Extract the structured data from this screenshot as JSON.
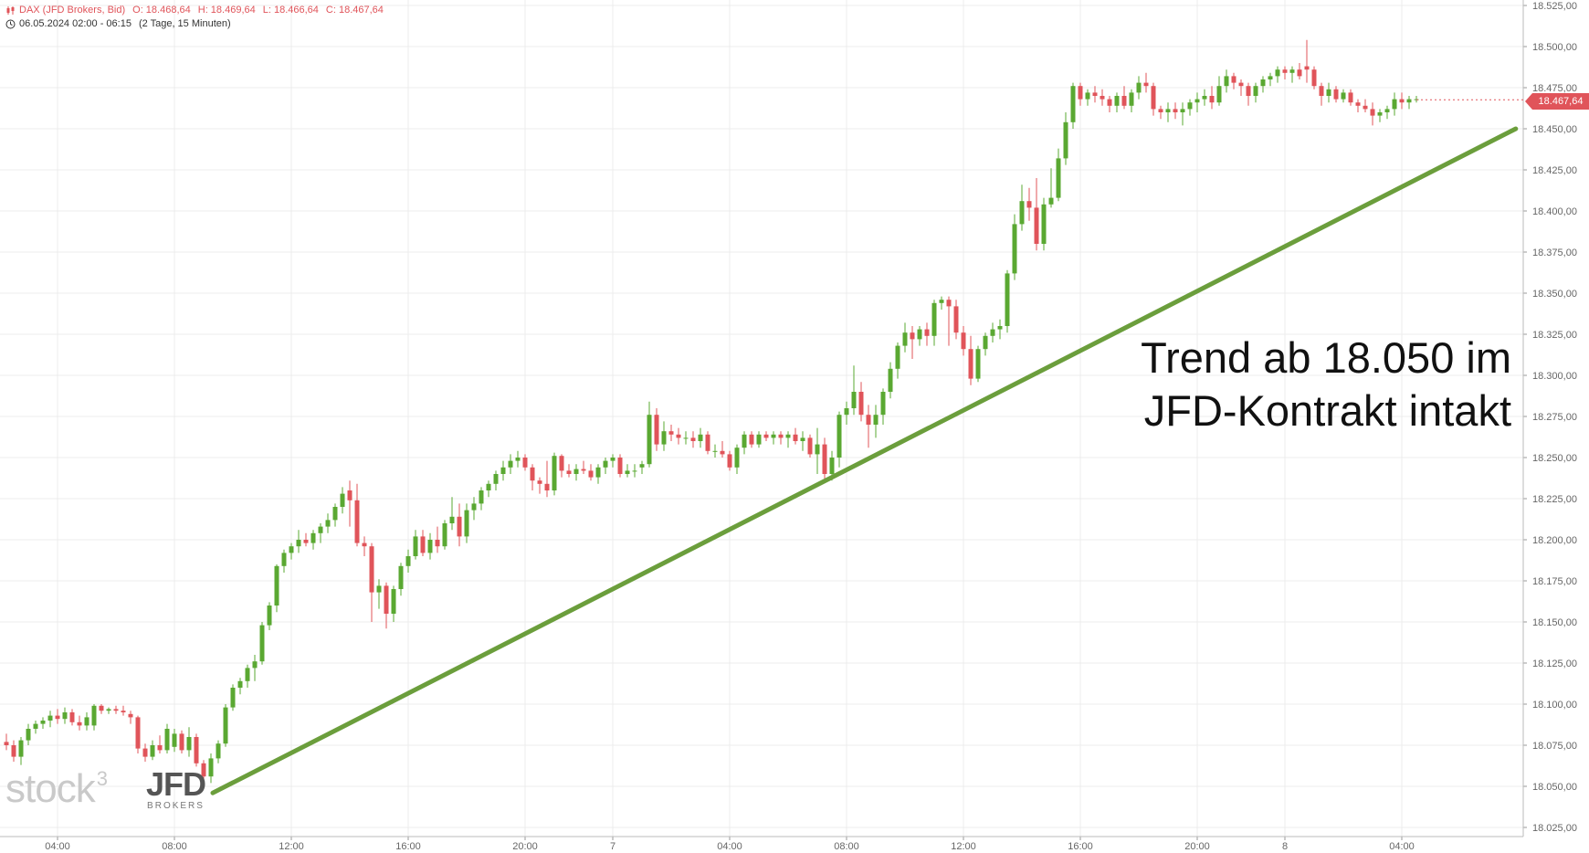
{
  "header": {
    "instrument": "DAX (JFD Brokers, Bid)",
    "open": "O: 18.468,64",
    "high": "H: 18.469,64",
    "low": "L: 18.466,64",
    "close": "C: 18.467,64",
    "period": "06.05.2024 02:00 - 06:15",
    "interval": "(2 Tage, 15 Minuten)"
  },
  "annotation": {
    "line1": "Trend ab 18.050 im",
    "line2": "JFD-Kontrakt intakt"
  },
  "price_badge": "18.467,64",
  "watermark": {
    "stock": "stock",
    "stock_sup": "3",
    "jfd": "JFD",
    "jfd_sub": "BROKERS"
  },
  "colors": {
    "up": "#5aa832",
    "down": "#e0545a",
    "trendline": "#6b9e3c",
    "grid": "#ececec",
    "axis_text": "#666666"
  },
  "chart_data": {
    "type": "candlestick",
    "title": "DAX (JFD Brokers, Bid)",
    "interval": "15 Minuten",
    "ylim": [
      18025,
      18525
    ],
    "y_ticks": [
      "18.525,00",
      "18.500,00",
      "18.475,00",
      "18.450,00",
      "18.425,00",
      "18.400,00",
      "18.375,00",
      "18.350,00",
      "18.325,00",
      "18.300,00",
      "18.275,00",
      "18.250,00",
      "18.225,00",
      "18.200,00",
      "18.175,00",
      "18.150,00",
      "18.125,00",
      "18.100,00",
      "18.075,00",
      "18.050,00",
      "18.025,00"
    ],
    "x_ticks": [
      "04:00",
      "08:00",
      "12:00",
      "16:00",
      "20:00",
      "7",
      "04:00",
      "08:00",
      "12:00",
      "16:00",
      "20:00",
      "8",
      "04:00"
    ],
    "last_price": 18467.64,
    "trendline": {
      "from": {
        "time": "06.05. 10:00",
        "value": 18046
      },
      "to": {
        "time": "08.05. 05:45",
        "value": 18450
      }
    },
    "candles": [
      [
        18077,
        18082,
        18072,
        18075
      ],
      [
        18075,
        18078,
        18065,
        18068
      ],
      [
        18068,
        18080,
        18063,
        18078
      ],
      [
        18078,
        18088,
        18075,
        18085
      ],
      [
        18085,
        18090,
        18082,
        18088
      ],
      [
        18088,
        18092,
        18085,
        18090
      ],
      [
        18090,
        18096,
        18086,
        18093
      ],
      [
        18093,
        18097,
        18088,
        18091
      ],
      [
        18091,
        18098,
        18088,
        18095
      ],
      [
        18095,
        18097,
        18087,
        18089
      ],
      [
        18089,
        18093,
        18084,
        18087
      ],
      [
        18087,
        18095,
        18084,
        18092
      ],
      [
        18087,
        18100,
        18084,
        18099
      ],
      [
        18099,
        18100,
        18094,
        18096
      ],
      [
        18096,
        18098,
        18094,
        18097
      ],
      [
        18097,
        18099,
        18094,
        18096
      ],
      [
        18096,
        18099,
        18093,
        18095
      ],
      [
        18094,
        18096,
        18088,
        18092
      ],
      [
        18092,
        18093,
        18070,
        18073
      ],
      [
        18073,
        18076,
        18065,
        18068
      ],
      [
        18068,
        18078,
        18066,
        18075
      ],
      [
        18075,
        18081,
        18070,
        18072
      ],
      [
        18072,
        18088,
        18070,
        18085
      ],
      [
        18074,
        18085,
        18071,
        18082
      ],
      [
        18082,
        18084,
        18070,
        18072
      ],
      [
        18072,
        18086,
        18068,
        18080
      ],
      [
        18080,
        18082,
        18062,
        18064
      ],
      [
        18064,
        18066,
        18054,
        18056
      ],
      [
        18056,
        18070,
        18052,
        18067
      ],
      [
        18067,
        18078,
        18064,
        18076
      ],
      [
        18076,
        18100,
        18074,
        18098
      ],
      [
        18098,
        18112,
        18096,
        18110
      ],
      [
        18110,
        18116,
        18106,
        18114
      ],
      [
        18114,
        18124,
        18110,
        18122
      ],
      [
        18122,
        18130,
        18114,
        18126
      ],
      [
        18126,
        18150,
        18124,
        18148
      ],
      [
        18148,
        18162,
        18145,
        18160
      ],
      [
        18160,
        18185,
        18156,
        18184
      ],
      [
        18184,
        18194,
        18180,
        18192
      ],
      [
        18192,
        18198,
        18188,
        18196
      ],
      [
        18196,
        18206,
        18192,
        18200
      ],
      [
        18200,
        18204,
        18196,
        18198
      ],
      [
        18198,
        18206,
        18194,
        18204
      ],
      [
        18204,
        18210,
        18198,
        18208
      ],
      [
        18208,
        18216,
        18204,
        18212
      ],
      [
        18212,
        18222,
        18208,
        18220
      ],
      [
        18220,
        18232,
        18216,
        18228
      ],
      [
        18230,
        18236,
        18208,
        18224
      ],
      [
        18224,
        18234,
        18196,
        18198
      ],
      [
        18198,
        18202,
        18190,
        18196
      ],
      [
        18196,
        18198,
        18150,
        18168
      ],
      [
        18168,
        18176,
        18158,
        18172
      ],
      [
        18172,
        18174,
        18146,
        18155
      ],
      [
        18155,
        18172,
        18150,
        18170
      ],
      [
        18170,
        18186,
        18166,
        18184
      ],
      [
        18184,
        18194,
        18180,
        18190
      ],
      [
        18190,
        18206,
        18188,
        18202
      ],
      [
        18202,
        18206,
        18190,
        18192
      ],
      [
        18192,
        18204,
        18188,
        18200
      ],
      [
        18200,
        18208,
        18192,
        18196
      ],
      [
        18196,
        18212,
        18194,
        18210
      ],
      [
        18210,
        18226,
        18206,
        18214
      ],
      [
        18214,
        18222,
        18196,
        18202
      ],
      [
        18202,
        18222,
        18198,
        18218
      ],
      [
        18218,
        18226,
        18212,
        18222
      ],
      [
        18222,
        18232,
        18218,
        18230
      ],
      [
        18230,
        18236,
        18226,
        18234
      ],
      [
        18234,
        18242,
        18230,
        18240
      ],
      [
        18240,
        18248,
        18236,
        18244
      ],
      [
        18244,
        18252,
        18240,
        18248
      ],
      [
        18248,
        18254,
        18244,
        18250
      ],
      [
        18250,
        18252,
        18242,
        18244
      ],
      [
        18244,
        18246,
        18230,
        18236
      ],
      [
        18236,
        18238,
        18228,
        18234
      ],
      [
        18234,
        18248,
        18226,
        18230
      ],
      [
        18230,
        18253,
        18227,
        18251
      ],
      [
        18251,
        18252,
        18238,
        18242
      ],
      [
        18242,
        18246,
        18238,
        18240
      ],
      [
        18240,
        18246,
        18236,
        18243
      ],
      [
        18243,
        18248,
        18240,
        18242
      ],
      [
        18242,
        18246,
        18236,
        18238
      ],
      [
        18238,
        18246,
        18234,
        18244
      ],
      [
        18244,
        18250,
        18240,
        18248
      ],
      [
        18248,
        18252,
        18244,
        18250
      ],
      [
        18250,
        18252,
        18238,
        18240
      ],
      [
        18240,
        18246,
        18238,
        18242
      ],
      [
        18242,
        18246,
        18238,
        18242
      ],
      [
        18244,
        18248,
        18240,
        18246
      ],
      [
        18246,
        18284,
        18244,
        18276
      ],
      [
        18276,
        18280,
        18254,
        18258
      ],
      [
        18258,
        18272,
        18254,
        18266
      ],
      [
        18266,
        18270,
        18260,
        18264
      ],
      [
        18264,
        18268,
        18258,
        18262
      ],
      [
        18262,
        18266,
        18258,
        18262
      ],
      [
        18262,
        18266,
        18256,
        18260
      ],
      [
        18260,
        18268,
        18256,
        18264
      ],
      [
        18264,
        18266,
        18252,
        18254
      ],
      [
        18254,
        18258,
        18250,
        18254
      ],
      [
        18254,
        18260,
        18250,
        18252
      ],
      [
        18252,
        18254,
        18242,
        18244
      ],
      [
        18244,
        18258,
        18240,
        18256
      ],
      [
        18256,
        18266,
        18252,
        18264
      ],
      [
        18264,
        18266,
        18256,
        18258
      ],
      [
        18258,
        18266,
        18256,
        18264
      ],
      [
        18264,
        18266,
        18260,
        18262
      ],
      [
        18262,
        18266,
        18258,
        18264
      ],
      [
        18264,
        18266,
        18258,
        18262
      ],
      [
        18262,
        18266,
        18256,
        18264
      ],
      [
        18264,
        18268,
        18258,
        18260
      ],
      [
        18260,
        18266,
        18254,
        18262
      ],
      [
        18262,
        18264,
        18250,
        18252
      ],
      [
        18252,
        18268,
        18240,
        18258
      ],
      [
        18258,
        18262,
        18236,
        18240
      ],
      [
        18240,
        18254,
        18236,
        18250
      ],
      [
        18250,
        18278,
        18244,
        18276
      ],
      [
        18276,
        18284,
        18270,
        18280
      ],
      [
        18280,
        18306,
        18276,
        18290
      ],
      [
        18290,
        18296,
        18272,
        18276
      ],
      [
        18276,
        18282,
        18256,
        18270
      ],
      [
        18270,
        18282,
        18262,
        18276
      ],
      [
        18276,
        18292,
        18270,
        18290
      ],
      [
        18290,
        18308,
        18286,
        18304
      ],
      [
        18304,
        18320,
        18298,
        18318
      ],
      [
        18318,
        18332,
        18314,
        18326
      ],
      [
        18326,
        18330,
        18310,
        18322
      ],
      [
        18322,
        18330,
        18318,
        18328
      ],
      [
        18328,
        18332,
        18318,
        18324
      ],
      [
        18324,
        18346,
        18318,
        18344
      ],
      [
        18344,
        18348,
        18340,
        18346
      ],
      [
        18346,
        18348,
        18318,
        18342
      ],
      [
        18342,
        18346,
        18322,
        18326
      ],
      [
        18326,
        18330,
        18312,
        18316
      ],
      [
        18316,
        18324,
        18294,
        18298
      ],
      [
        18298,
        18318,
        18296,
        18316
      ],
      [
        18316,
        18326,
        18312,
        18324
      ],
      [
        18324,
        18332,
        18320,
        18328
      ],
      [
        18328,
        18334,
        18322,
        18330
      ],
      [
        18330,
        18364,
        18326,
        18362
      ],
      [
        18362,
        18398,
        18358,
        18392
      ],
      [
        18392,
        18416,
        18388,
        18406
      ],
      [
        18406,
        18414,
        18394,
        18402
      ],
      [
        18402,
        18420,
        18376,
        18380
      ],
      [
        18380,
        18408,
        18376,
        18404
      ],
      [
        18404,
        18426,
        18402,
        18408
      ],
      [
        18408,
        18438,
        18406,
        18432
      ],
      [
        18432,
        18460,
        18428,
        18454
      ],
      [
        18454,
        18478,
        18450,
        18476
      ],
      [
        18476,
        18478,
        18464,
        18468
      ],
      [
        18468,
        18474,
        18464,
        18472
      ],
      [
        18472,
        18476,
        18466,
        18470
      ],
      [
        18470,
        18474,
        18464,
        18468
      ],
      [
        18468,
        18470,
        18460,
        18464
      ],
      [
        18464,
        18472,
        18460,
        18470
      ],
      [
        18470,
        18476,
        18462,
        18464
      ],
      [
        18464,
        18474,
        18460,
        18472
      ],
      [
        18472,
        18482,
        18468,
        18478
      ],
      [
        18478,
        18484,
        18472,
        18476
      ],
      [
        18476,
        18478,
        18458,
        18462
      ],
      [
        18462,
        18464,
        18456,
        18460
      ],
      [
        18460,
        18466,
        18454,
        18462
      ],
      [
        18462,
        18466,
        18456,
        18460
      ],
      [
        18460,
        18466,
        18452,
        18462
      ],
      [
        18462,
        18468,
        18458,
        18466
      ],
      [
        18466,
        18472,
        18460,
        18468
      ],
      [
        18468,
        18474,
        18464,
        18470
      ],
      [
        18470,
        18476,
        18462,
        18466
      ],
      [
        18466,
        18482,
        18464,
        18476
      ],
      [
        18476,
        18486,
        18472,
        18482
      ],
      [
        18482,
        18484,
        18474,
        18478
      ],
      [
        18478,
        18480,
        18470,
        18476
      ],
      [
        18476,
        18478,
        18464,
        18470
      ],
      [
        18470,
        18478,
        18466,
        18476
      ],
      [
        18476,
        18482,
        18472,
        18480
      ],
      [
        18480,
        18484,
        18476,
        18482
      ],
      [
        18482,
        18488,
        18478,
        18486
      ],
      [
        18486,
        18488,
        18480,
        18484
      ],
      [
        18484,
        18488,
        18478,
        18486
      ],
      [
        18486,
        18490,
        18480,
        18482
      ],
      [
        18488,
        18504,
        18478,
        18486
      ],
      [
        18486,
        18488,
        18474,
        18476
      ],
      [
        18476,
        18478,
        18464,
        18470
      ],
      [
        18470,
        18478,
        18466,
        18474
      ],
      [
        18474,
        18476,
        18466,
        18468
      ],
      [
        18468,
        18474,
        18466,
        18472
      ],
      [
        18472,
        18474,
        18464,
        18466
      ],
      [
        18466,
        18468,
        18460,
        18464
      ],
      [
        18464,
        18468,
        18460,
        18462
      ],
      [
        18462,
        18466,
        18452,
        18458
      ],
      [
        18458,
        18462,
        18454,
        18460
      ],
      [
        18460,
        18464,
        18456,
        18462
      ],
      [
        18462,
        18472,
        18458,
        18468
      ],
      [
        18468,
        18472,
        18462,
        18466
      ],
      [
        18466,
        18470,
        18462,
        18468
      ],
      [
        18468,
        18470,
        18466,
        18468
      ]
    ]
  }
}
